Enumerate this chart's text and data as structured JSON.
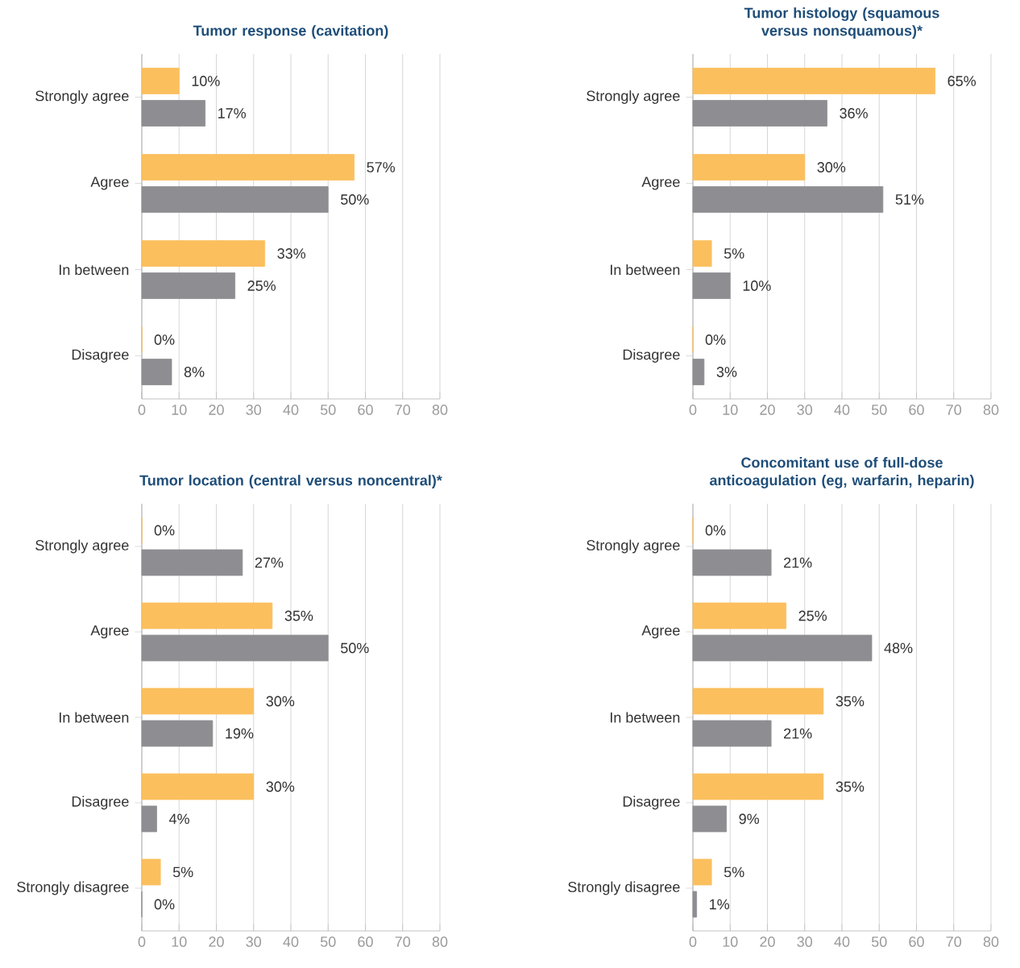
{
  "chart_data": [
    {
      "type": "bar",
      "orientation": "horizontal",
      "title": "Tumor response (cavitation)",
      "categories": [
        "Strongly agree",
        "Agree",
        "In between",
        "Disagree"
      ],
      "series": [
        {
          "color": "#fbbf5e",
          "values": [
            10,
            57,
            33,
            0
          ],
          "value_labels": [
            "10%",
            "57%",
            "33%",
            "0%"
          ]
        },
        {
          "color": "#8e8e92",
          "values": [
            17,
            50,
            25,
            8
          ],
          "value_labels": [
            "17%",
            "50%",
            "25%",
            "8%"
          ]
        }
      ],
      "xlim": [
        0,
        80
      ],
      "xticks": [
        0,
        10,
        20,
        30,
        40,
        50,
        60,
        70,
        80
      ],
      "grid": "x"
    },
    {
      "type": "bar",
      "orientation": "horizontal",
      "title": "Tumor histology (squamous versus nonsquamous)*",
      "categories": [
        "Strongly agree",
        "Agree",
        "In between",
        "Disagree"
      ],
      "series": [
        {
          "color": "#fbbf5e",
          "values": [
            65,
            30,
            5,
            0
          ],
          "value_labels": [
            "65%",
            "30%",
            "5%",
            "0%"
          ]
        },
        {
          "color": "#8e8e92",
          "values": [
            36,
            51,
            10,
            3
          ],
          "value_labels": [
            "36%",
            "51%",
            "10%",
            "3%"
          ]
        }
      ],
      "xlim": [
        0,
        80
      ],
      "xticks": [
        0,
        10,
        20,
        30,
        40,
        50,
        60,
        70,
        80
      ],
      "grid": "x"
    },
    {
      "type": "bar",
      "orientation": "horizontal",
      "title": "Tumor location (central versus noncentral)*",
      "categories": [
        "Strongly agree",
        "Agree",
        "In between",
        "Disagree",
        "Strongly disagree"
      ],
      "series": [
        {
          "color": "#fbbf5e",
          "values": [
            0,
            35,
            30,
            30,
            5
          ],
          "value_labels": [
            "0%",
            "35%",
            "30%",
            "30%",
            "5%"
          ]
        },
        {
          "color": "#8e8e92",
          "values": [
            27,
            50,
            19,
            4,
            0
          ],
          "value_labels": [
            "27%",
            "50%",
            "19%",
            "4%",
            "0%"
          ]
        }
      ],
      "xlim": [
        0,
        80
      ],
      "xticks": [
        0,
        10,
        20,
        30,
        40,
        50,
        60,
        70,
        80
      ],
      "grid": "x"
    },
    {
      "type": "bar",
      "orientation": "horizontal",
      "title": "Concomitant use of full-dose anticoagulation (eg, warfarin, heparin)",
      "categories": [
        "Strongly agree",
        "Agree",
        "In between",
        "Disagree",
        "Strongly disagree"
      ],
      "series": [
        {
          "color": "#fbbf5e",
          "values": [
            0,
            25,
            35,
            35,
            5
          ],
          "value_labels": [
            "0%",
            "25%",
            "35%",
            "35%",
            "5%"
          ]
        },
        {
          "color": "#8e8e92",
          "values": [
            21,
            48,
            21,
            9,
            1
          ],
          "value_labels": [
            "21%",
            "48%",
            "21%",
            "9%",
            "1%"
          ]
        }
      ],
      "xlim": [
        0,
        80
      ],
      "xticks": [
        0,
        10,
        20,
        30,
        40,
        50,
        60,
        70,
        80
      ],
      "grid": "x"
    }
  ]
}
